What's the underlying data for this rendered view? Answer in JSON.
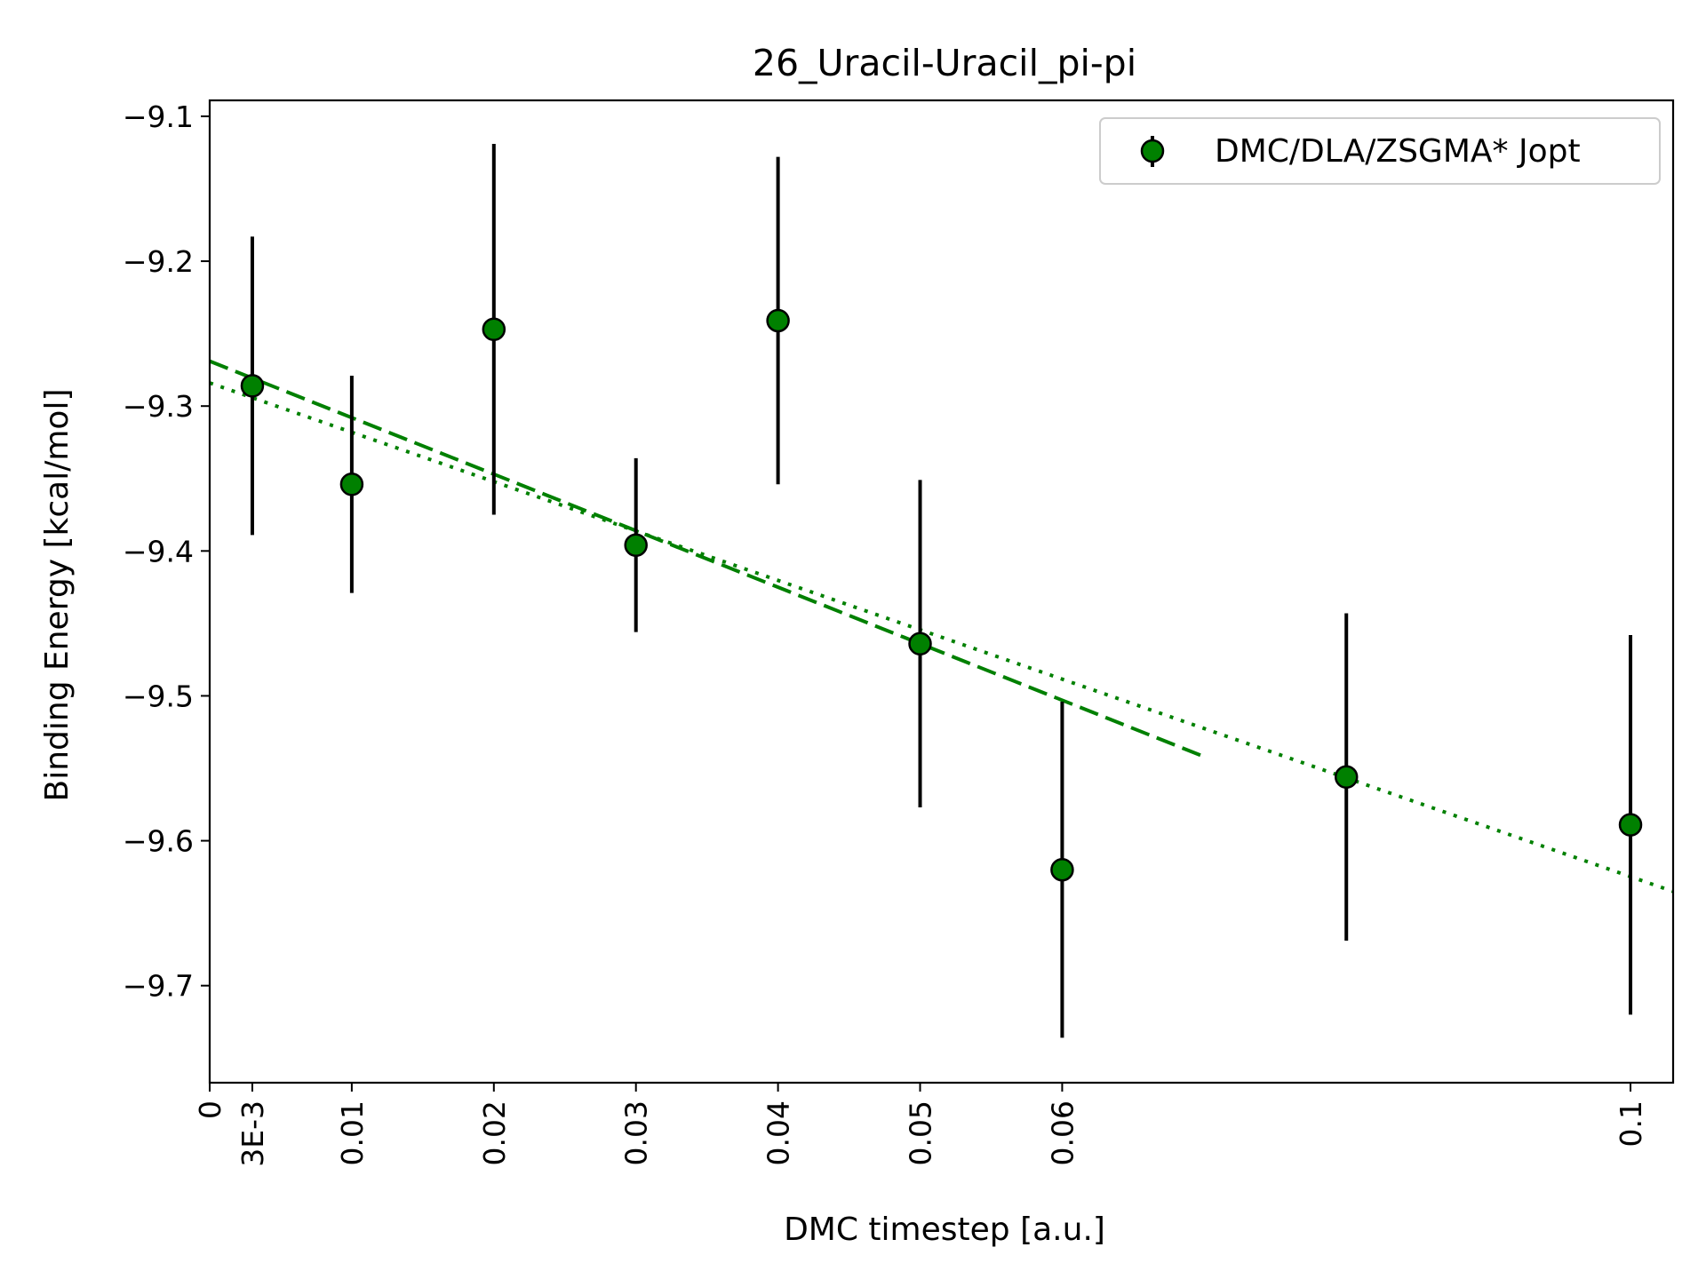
{
  "chart_data": {
    "type": "scatter",
    "title": "26_Uracil-Uracil_pi-pi",
    "xlabel": "DMC timestep [a.u.]",
    "ylabel": "Binding Energy [kcal/mol]",
    "xlim": [
      0,
      0.103
    ],
    "ylim": [
      -9.767,
      -9.089
    ],
    "x_ticks": [
      {
        "value": 0,
        "label": "0"
      },
      {
        "value": 0.003,
        "label": "3E-3"
      },
      {
        "value": 0.01,
        "label": "0.01"
      },
      {
        "value": 0.02,
        "label": "0.02"
      },
      {
        "value": 0.03,
        "label": "0.03"
      },
      {
        "value": 0.04,
        "label": "0.04"
      },
      {
        "value": 0.05,
        "label": "0.05"
      },
      {
        "value": 0.06,
        "label": "0.06"
      },
      {
        "value": 0.1,
        "label": "0.1"
      }
    ],
    "y_ticks": [
      {
        "value": -9.1,
        "label": "−9.1"
      },
      {
        "value": -9.2,
        "label": "−9.2"
      },
      {
        "value": -9.3,
        "label": "−9.3"
      },
      {
        "value": -9.4,
        "label": "−9.4"
      },
      {
        "value": -9.5,
        "label": "−9.5"
      },
      {
        "value": -9.6,
        "label": "−9.6"
      },
      {
        "value": -9.7,
        "label": "−9.7"
      }
    ],
    "grid": false,
    "legend_position": "top-right",
    "series": [
      {
        "name": "DMC/DLA/ZSGMA* Jopt",
        "color": "#008000",
        "marker": "circle",
        "error_color": "#000000",
        "points": [
          {
            "x": 0.003,
            "y": -9.286,
            "err": 0.103
          },
          {
            "x": 0.01,
            "y": -9.354,
            "err": 0.075
          },
          {
            "x": 0.02,
            "y": -9.247,
            "err": 0.128
          },
          {
            "x": 0.03,
            "y": -9.396,
            "err": 0.06
          },
          {
            "x": 0.04,
            "y": -9.241,
            "err": 0.113
          },
          {
            "x": 0.05,
            "y": -9.464,
            "err": 0.113
          },
          {
            "x": 0.06,
            "y": -9.62,
            "err": 0.116
          },
          {
            "x": 0.08,
            "y": -9.556,
            "err": 0.113
          },
          {
            "x": 0.1,
            "y": -9.589,
            "err": 0.131
          }
        ]
      }
    ],
    "fit_lines": [
      {
        "style": "dashed",
        "color": "#008000",
        "x": [
          0,
          0.07
        ],
        "y": [
          -9.269,
          -9.542
        ]
      },
      {
        "style": "dotted",
        "color": "#008000",
        "x": [
          0,
          0.103
        ],
        "y": [
          -9.284,
          -9.635
        ]
      }
    ]
  }
}
